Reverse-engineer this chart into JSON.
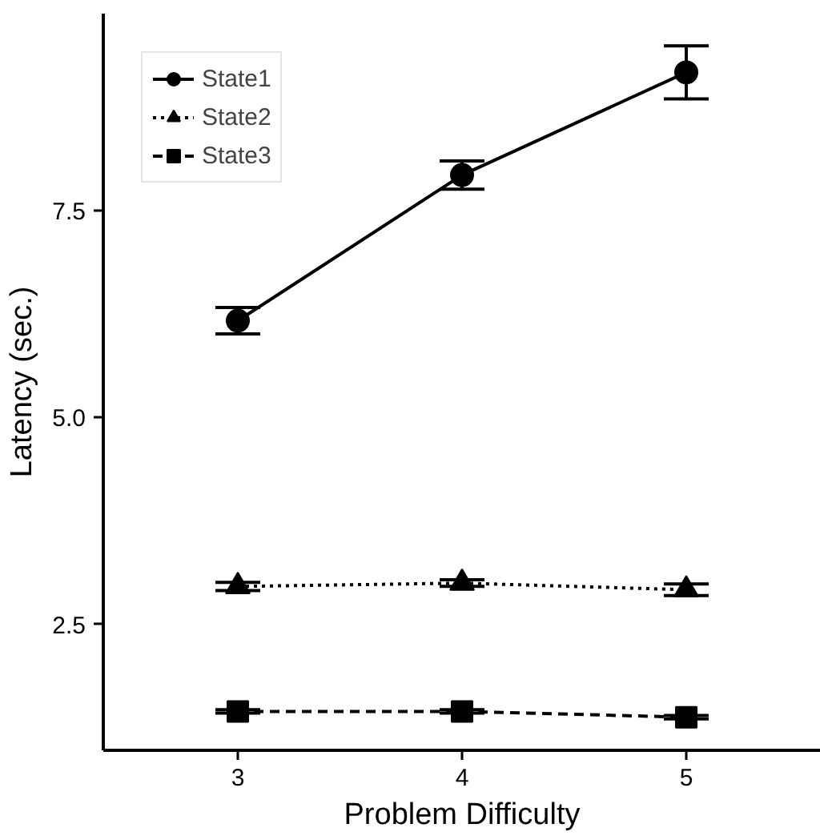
{
  "chart_data": {
    "type": "line",
    "xlabel": "Problem Difficulty",
    "ylabel": "Latency (sec.)",
    "x": [
      3,
      4,
      5
    ],
    "xlim": [
      2.4,
      5.6
    ],
    "xticks": [
      3,
      4,
      5
    ],
    "ylim": [
      0.98,
      9.88
    ],
    "yticks": [
      {
        "value": 2.5,
        "label": "2.5"
      },
      {
        "value": 5,
        "label": "5.0"
      },
      {
        "value": 7.5,
        "label": "7.5"
      }
    ],
    "grid": false,
    "legend": "top left",
    "series": [
      {
        "name": "State1",
        "color": "#000000",
        "marker": "circle",
        "line_style": "solid",
        "values": [
          6.17,
          7.93,
          9.17
        ],
        "errors": [
          0.16,
          0.17,
          0.32
        ]
      },
      {
        "name": "State2",
        "color": "#000000",
        "marker": "triangle",
        "line_style": "dotted",
        "values": [
          2.96,
          3.0,
          2.92
        ],
        "errors": [
          0.05,
          0.04,
          0.07
        ]
      },
      {
        "name": "State3",
        "color": "#000000",
        "marker": "square",
        "line_style": "dashed",
        "values": [
          1.45,
          1.45,
          1.38
        ],
        "errors": [
          0.02,
          0.02,
          0.02
        ]
      }
    ]
  }
}
